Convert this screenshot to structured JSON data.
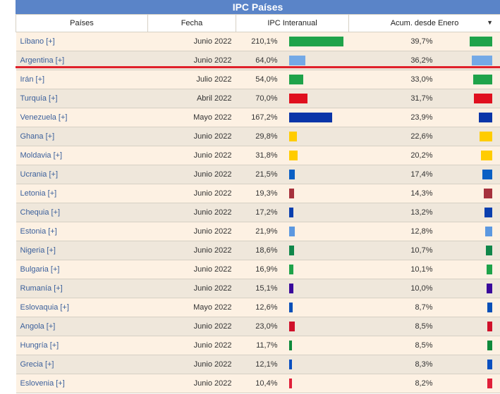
{
  "title": "IPC Países",
  "headers": {
    "paises": "Países",
    "fecha": "Fecha",
    "ipc": "IPC Interanual",
    "acum": "Acum. desde Enero",
    "sort_glyph": "▼"
  },
  "rows": [
    {
      "country": "Líbano [+]",
      "date": "Junio 2022",
      "ipc": "210,1%",
      "ipc_value": 210.1,
      "acum": "39,7%",
      "acum_value": 39.7,
      "color": "#1fa34a"
    },
    {
      "country": "Argentina [+]",
      "date": "Junio 2022",
      "ipc": "64,0%",
      "ipc_value": 64.0,
      "acum": "36,2%",
      "acum_value": 36.2,
      "color": "#74a9e6"
    },
    {
      "country": "Irán [+]",
      "date": "Julio 2022",
      "ipc": "54,0%",
      "ipc_value": 54.0,
      "acum": "33,0%",
      "acum_value": 33.0,
      "color": "#1fa34a"
    },
    {
      "country": "Turquía [+]",
      "date": "Abril 2022",
      "ipc": "70,0%",
      "ipc_value": 70.0,
      "acum": "31,7%",
      "acum_value": 31.7,
      "color": "#e0101f"
    },
    {
      "country": "Venezuela [+]",
      "date": "Mayo 2022",
      "ipc": "167,2%",
      "ipc_value": 167.2,
      "acum": "23,9%",
      "acum_value": 23.9,
      "color": "#0a35a8"
    },
    {
      "country": "Ghana [+]",
      "date": "Junio 2022",
      "ipc": "29,8%",
      "ipc_value": 29.8,
      "acum": "22,6%",
      "acum_value": 22.6,
      "color": "#ffcc00"
    },
    {
      "country": "Moldavia [+]",
      "date": "Junio 2022",
      "ipc": "31,8%",
      "ipc_value": 31.8,
      "acum": "20,2%",
      "acum_value": 20.2,
      "color": "#ffcc00"
    },
    {
      "country": "Ucrania [+]",
      "date": "Junio 2022",
      "ipc": "21,5%",
      "ipc_value": 21.5,
      "acum": "17,4%",
      "acum_value": 17.4,
      "color": "#0a5fc4"
    },
    {
      "country": "Letonia [+]",
      "date": "Junio 2022",
      "ipc": "19,3%",
      "ipc_value": 19.3,
      "acum": "14,3%",
      "acum_value": 14.3,
      "color": "#a6323d"
    },
    {
      "country": "Chequia [+]",
      "date": "Junio 2022",
      "ipc": "17,2%",
      "ipc_value": 17.2,
      "acum": "13,2%",
      "acum_value": 13.2,
      "color": "#0a3fae"
    },
    {
      "country": "Estonia [+]",
      "date": "Junio 2022",
      "ipc": "21,9%",
      "ipc_value": 21.9,
      "acum": "12,8%",
      "acum_value": 12.8,
      "color": "#5c98e0"
    },
    {
      "country": "Nigeria [+]",
      "date": "Junio 2022",
      "ipc": "18,6%",
      "ipc_value": 18.6,
      "acum": "10,7%",
      "acum_value": 10.7,
      "color": "#10874a"
    },
    {
      "country": "Bulgaria [+]",
      "date": "Junio 2022",
      "ipc": "16,9%",
      "ipc_value": 16.9,
      "acum": "10,1%",
      "acum_value": 10.1,
      "color": "#1fa34a"
    },
    {
      "country": "Rumanía [+]",
      "date": "Junio 2022",
      "ipc": "15,1%",
      "ipc_value": 15.1,
      "acum": "10,0%",
      "acum_value": 10.0,
      "color": "#3a0a9c"
    },
    {
      "country": "Eslovaquia [+]",
      "date": "Mayo 2022",
      "ipc": "12,6%",
      "ipc_value": 12.6,
      "acum": "8,7%",
      "acum_value": 8.7,
      "color": "#0a4fb8"
    },
    {
      "country": "Angola [+]",
      "date": "Junio 2022",
      "ipc": "23,0%",
      "ipc_value": 23.0,
      "acum": "8,5%",
      "acum_value": 8.5,
      "color": "#d0102a"
    },
    {
      "country": "Hungría [+]",
      "date": "Junio 2022",
      "ipc": "11,7%",
      "ipc_value": 11.7,
      "acum": "8,5%",
      "acum_value": 8.5,
      "color": "#0f8a3c"
    },
    {
      "country": "Grecia [+]",
      "date": "Junio 2022",
      "ipc": "12,1%",
      "ipc_value": 12.1,
      "acum": "8,3%",
      "acum_value": 8.3,
      "color": "#0a50c0"
    },
    {
      "country": "Eslovenia [+]",
      "date": "Junio 2022",
      "ipc": "10,4%",
      "ipc_value": 10.4,
      "acum": "8,2%",
      "acum_value": 8.2,
      "color": "#e0203a"
    }
  ]
}
